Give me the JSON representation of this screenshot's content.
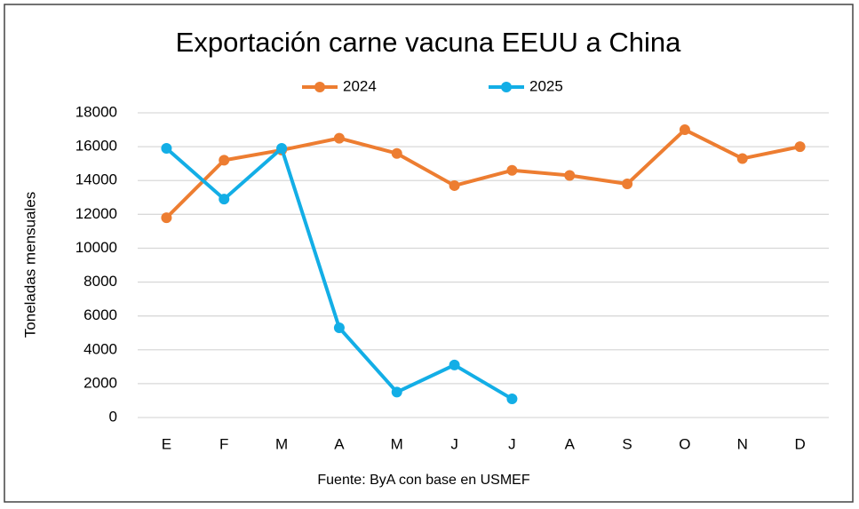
{
  "chart_data": {
    "type": "line",
    "title": "Exportación carne vacuna EEUU a China",
    "y_label": "Toneladas mensuales",
    "source": "Fuente: ByA con base en USMEF",
    "categories": [
      "E",
      "F",
      "M",
      "A",
      "M",
      "J",
      "J",
      "A",
      "S",
      "O",
      "N",
      "D"
    ],
    "series": [
      {
        "name": "2024",
        "color": "#ed7d31",
        "values": [
          11800,
          15200,
          15800,
          16500,
          15600,
          13700,
          14600,
          14300,
          13800,
          17000,
          15300,
          16000
        ]
      },
      {
        "name": "2025",
        "color": "#13aee6",
        "values": [
          15900,
          12900,
          15900,
          5300,
          1500,
          3100,
          1100,
          null,
          null,
          null,
          null,
          null
        ]
      }
    ],
    "ylim": [
      0,
      18000
    ],
    "yticks": [
      0,
      2000,
      4000,
      6000,
      8000,
      10000,
      12000,
      14000,
      16000,
      18000
    ],
    "grid": true,
    "legend": "top"
  }
}
